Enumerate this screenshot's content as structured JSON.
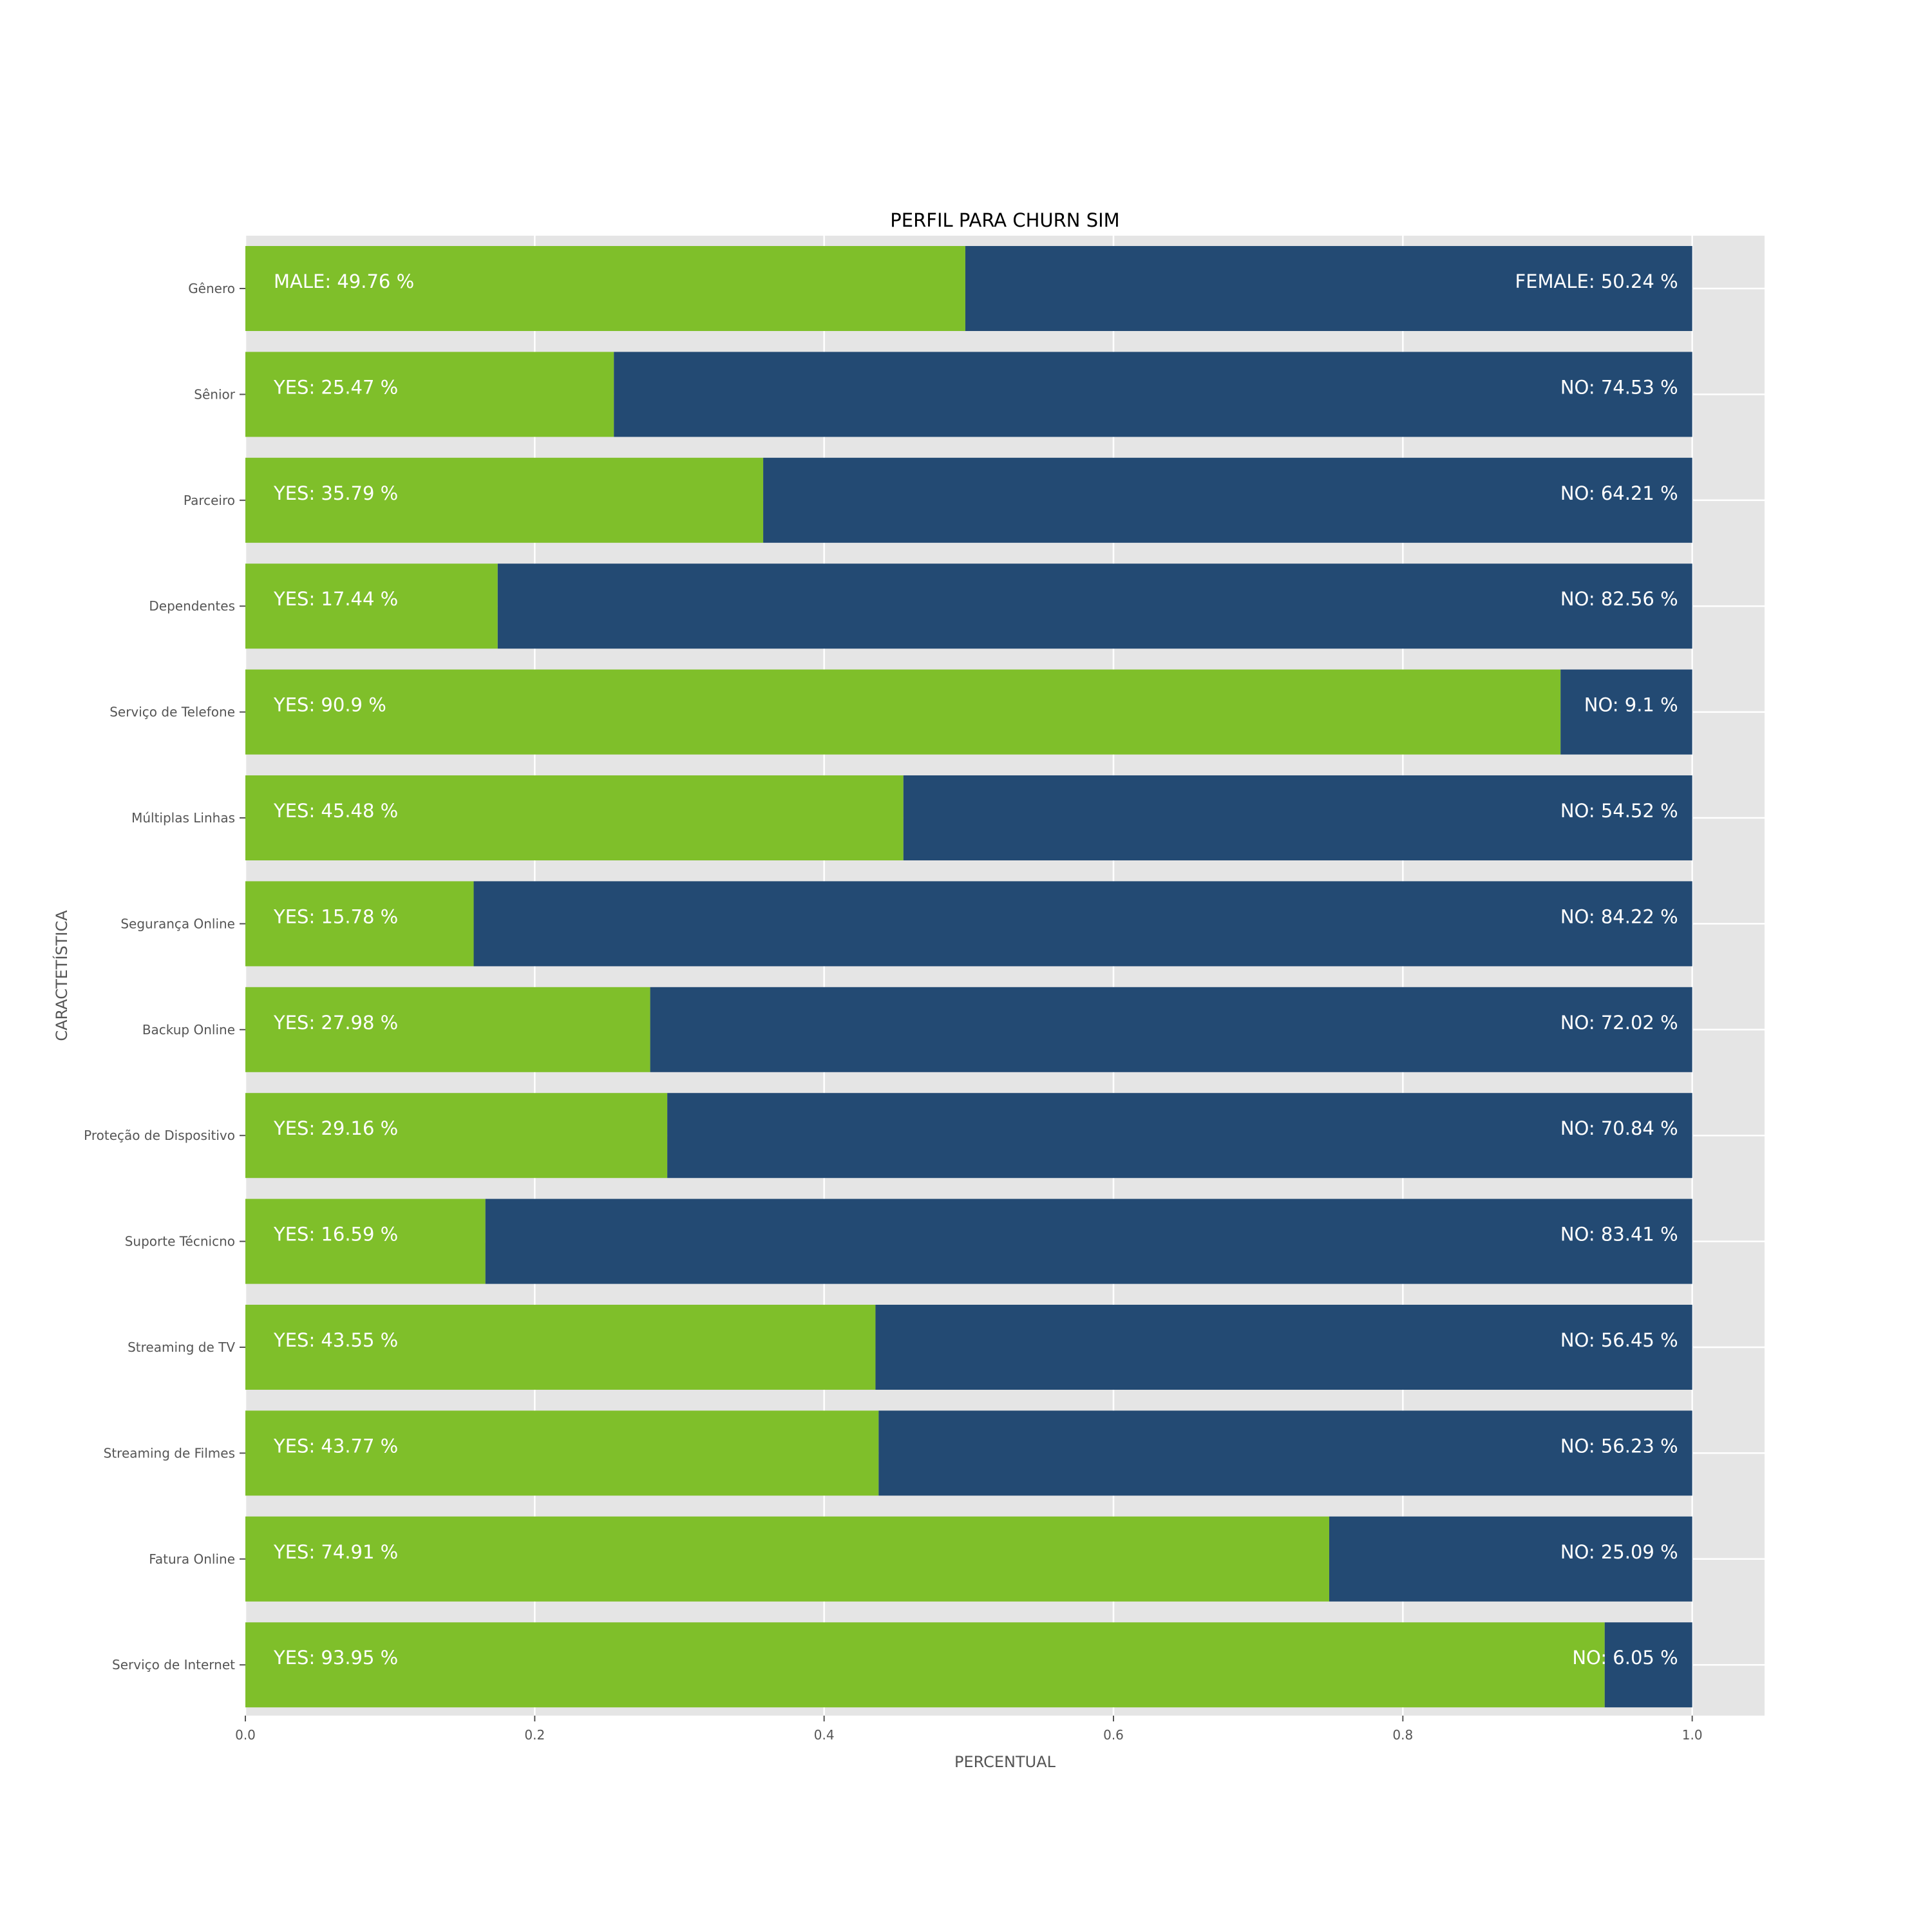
{
  "colors": {
    "left_series": "#7fbf2a",
    "right_series": "#234a73",
    "plot_background": "#e5e5e5",
    "grid": "#ffffff",
    "tick_text": "#555555",
    "bar_text": "#ffffff"
  },
  "chart_data": {
    "type": "bar",
    "orientation": "horizontal",
    "stacked": true,
    "title": "PERFIL PARA CHURN SIM",
    "xlabel": "PERCENTUAL",
    "ylabel": "CARACTETÍSTICA",
    "xlim": [
      0,
      1.05
    ],
    "xticks": [
      0.0,
      0.2,
      0.4,
      0.6,
      0.8,
      1.0
    ],
    "xtick_labels": [
      "0.0",
      "0.2",
      "0.4",
      "0.6",
      "0.8",
      "1.0"
    ],
    "grid": true,
    "legend": "none",
    "categories": [
      "Gênero",
      "Sênior",
      "Parceiro",
      "Dependentes",
      "Serviço de Telefone",
      "Múltiplas Linhas",
      "Segurança Online",
      "Backup Online",
      "Proteção de Dispositivo",
      "Suporte Técnicno",
      "Streaming de TV",
      "Streaming de Filmes",
      "Fatura Online",
      "Serviço de Internet"
    ],
    "series": [
      {
        "values": [
          0.4976,
          0.2547,
          0.3579,
          0.1744,
          0.909,
          0.4548,
          0.1578,
          0.2798,
          0.2916,
          0.1659,
          0.4355,
          0.4377,
          0.7491,
          0.9395
        ],
        "labels": [
          "MALE: 49.76 %",
          "YES: 25.47 %",
          "YES: 35.79 %",
          "YES: 17.44 %",
          "YES: 90.9 %",
          "YES: 45.48 %",
          "YES: 15.78 %",
          "YES: 27.98 %",
          "YES: 29.16 %",
          "YES: 16.59 %",
          "YES: 43.55 %",
          "YES: 43.77 %",
          "YES: 74.91 %",
          "YES: 93.95 %"
        ]
      },
      {
        "values": [
          0.5024,
          0.7453,
          0.6421,
          0.8256,
          0.091,
          0.5452,
          0.8422,
          0.7202,
          0.7084,
          0.8341,
          0.5645,
          0.5623,
          0.2509,
          0.0605
        ],
        "labels": [
          "FEMALE: 50.24 %",
          "NO: 74.53 %",
          "NO: 64.21 %",
          "NO: 82.56 %",
          "NO: 9.1 %",
          "NO: 54.52 %",
          "NO: 84.22 %",
          "NO: 72.02 %",
          "NO: 70.84 %",
          "NO: 83.41 %",
          "NO: 56.45 %",
          "NO: 56.23 %",
          "NO: 25.09 %",
          "NO: 6.05 %"
        ]
      }
    ]
  }
}
